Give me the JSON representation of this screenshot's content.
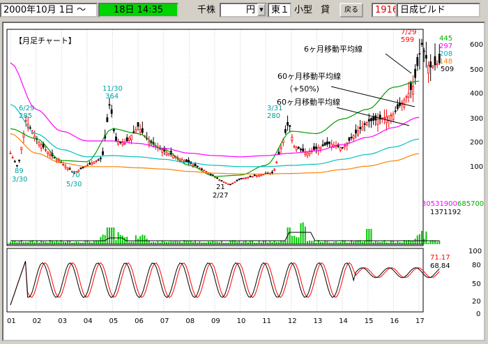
{
  "toolbar": {
    "date": "2000年10月 1日",
    "tilde": "～",
    "time": "18日 14:35",
    "unit_thousand": "千株",
    "currency": "円",
    "market": "東１",
    "size": "小型",
    "lending": "貸",
    "back_label": "戻る",
    "code": "1916",
    "company": "日成ビルド"
  },
  "chart": {
    "title": "【月足チャート】",
    "price_axis": [
      "600",
      "500",
      "400",
      "300",
      "200",
      "100"
    ],
    "volume_axis": [
      "30531900",
      "1371192",
      "685700"
    ],
    "osc_axis": [
      "100",
      "80",
      "50",
      "20",
      "0"
    ],
    "osc_values": [
      "71.17",
      "68.84"
    ],
    "ma_values": [
      "445",
      "297",
      "208",
      "148",
      "509"
    ],
    "last_high": {
      "date": "7/29",
      "value": "599"
    },
    "annotations": [
      "6ヶ月移動平均線",
      "60ヶ月移動平均線",
      "（+50%)",
      "60ヶ月移動平均線"
    ],
    "point_labels": [
      "6/29",
      "285",
      "11/30",
      "364",
      "3/31",
      "280",
      "89",
      "3/30",
      "70",
      "5/30",
      "21",
      "2/27"
    ],
    "x_axis": [
      "01",
      "02",
      "03",
      "04",
      "05",
      "06",
      "07",
      "08",
      "09",
      "10",
      "11",
      "12",
      "13",
      "14",
      "15",
      "16",
      "17"
    ]
  },
  "chart_data": [
    {
      "type": "line",
      "title": "【月足チャート】",
      "x": [
        "01",
        "02",
        "03",
        "04",
        "05",
        "06",
        "07",
        "08",
        "09",
        "10",
        "11",
        "12",
        "13",
        "14",
        "15",
        "16",
        "17"
      ],
      "series": [
        {
          "name": "6ヶ月移動平均線",
          "values": [
            250,
            210,
            120,
            115,
            250,
            230,
            165,
            100,
            55,
            60,
            100,
            240,
            230,
            290,
            330,
            420,
            445
          ]
        },
        {
          "name": "60ヶ月移動平均線",
          "values": [
            520,
            330,
            240,
            200,
            200,
            190,
            170,
            150,
            140,
            135,
            140,
            150,
            160,
            185,
            215,
            255,
            297
          ]
        },
        {
          "name": "60ヶ月移動平均線（+50%)",
          "values": [
            350,
            230,
            165,
            135,
            140,
            135,
            125,
            110,
            100,
            95,
            95,
            100,
            105,
            125,
            145,
            175,
            208
          ]
        },
        {
          "name": "",
          "values": [
            230,
            150,
            110,
            95,
            95,
            90,
            85,
            75,
            68,
            65,
            65,
            67,
            70,
            83,
            97,
            118,
            148
          ]
        }
      ],
      "ylim": [
        0,
        650
      ],
      "annotations": [
        {
          "text": "7/29",
          "value": 599
        },
        {
          "text": "11/30",
          "value": 364
        },
        {
          "text": "3/31",
          "value": 280
        },
        {
          "text": "6/29",
          "value": 285
        },
        {
          "text": "3/30",
          "value": 89
        },
        {
          "text": "5/30",
          "value": 70
        },
        {
          "text": "2/27",
          "value": 21
        }
      ]
    },
    {
      "type": "bar",
      "title": "",
      "max": 30531900,
      "values_label": [
        "30531900",
        "1371192",
        "685700"
      ]
    },
    {
      "type": "line",
      "title": "",
      "ylim": [
        0,
        100
      ],
      "series": [
        {
          "name": "",
          "last": 71.17
        },
        {
          "name": "",
          "last": 68.84
        }
      ]
    }
  ],
  "colors": {
    "green_field": "#00c800",
    "ma6": "#00a000",
    "ma60": "#ff00ff",
    "ma60p": "#00c0c0",
    "ma_orange": "#ff8000",
    "candle_up": "#ff0000",
    "osc_red": "#ff0000",
    "osc_black": "#000000"
  }
}
